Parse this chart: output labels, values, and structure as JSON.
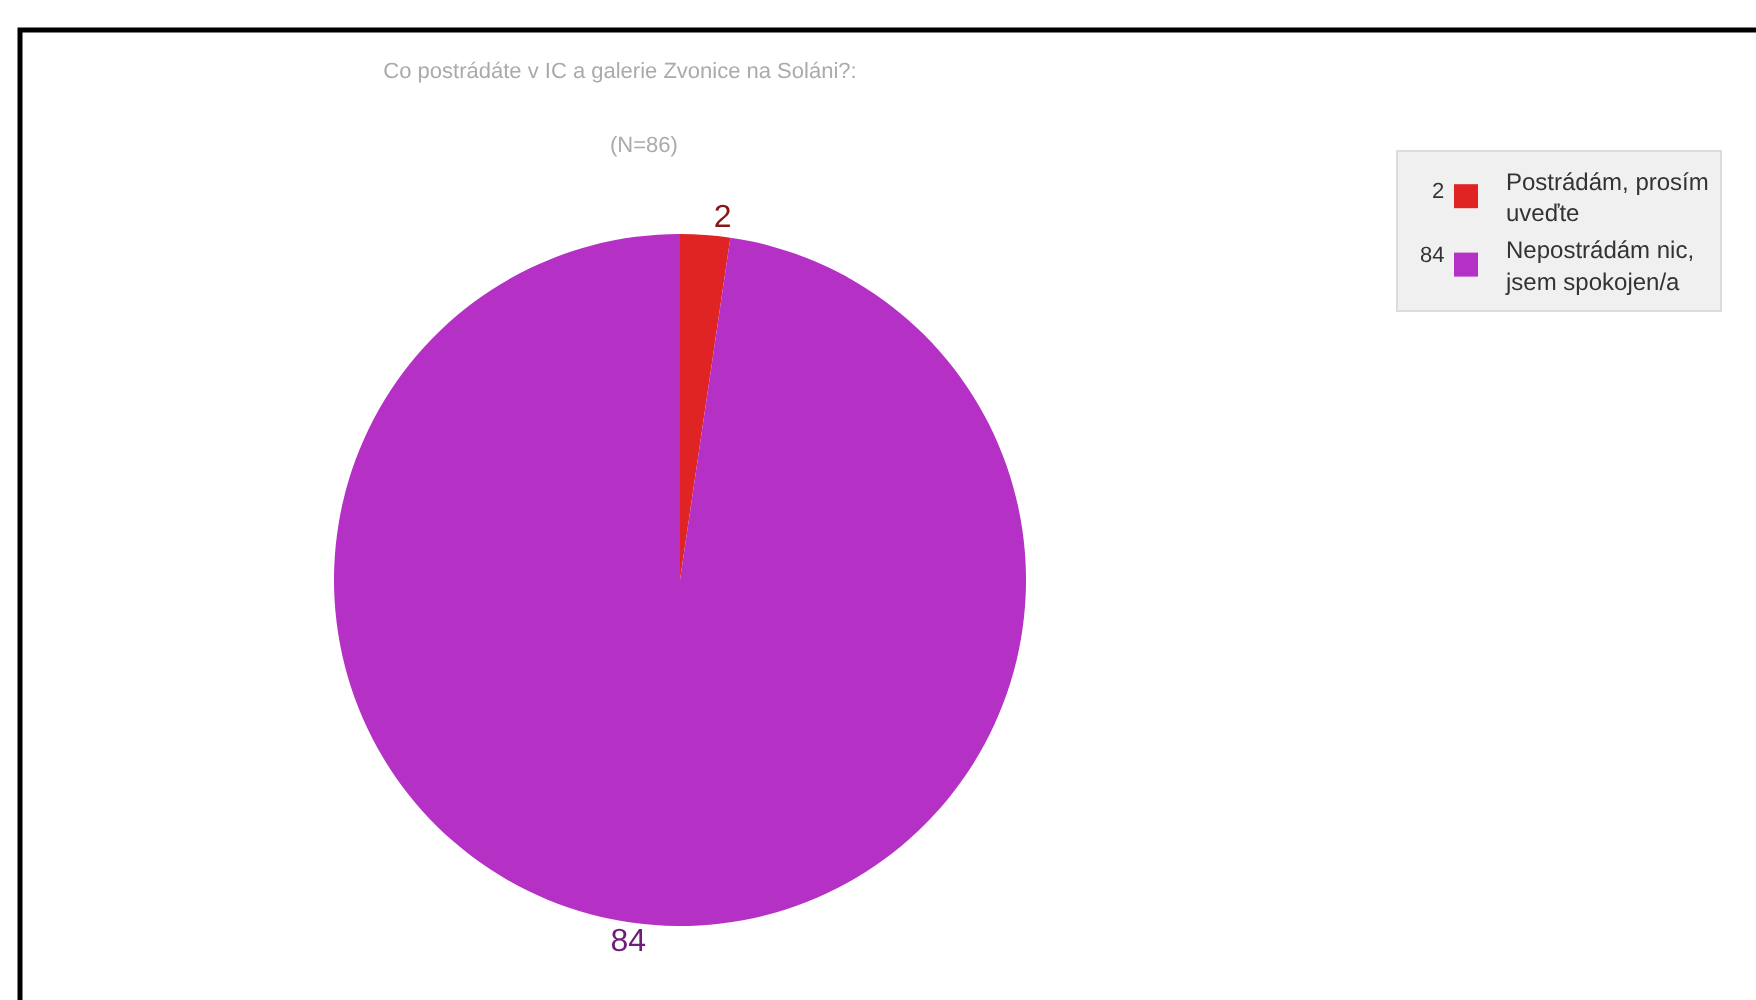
{
  "chart_data": {
    "type": "pie",
    "title": "Co postrádáte v IC a galerie Zvonice na Soláni?:",
    "subtitle": "(N=86)",
    "categories": [
      "Postrádám, prosím uveďte",
      "Nepostrádám nic, jsem spokojen/a"
    ],
    "values": [
      2,
      84
    ],
    "colors": [
      "#e02424",
      "#b530c5"
    ],
    "value_labels": [
      "2",
      "84"
    ],
    "legend": "top right"
  }
}
